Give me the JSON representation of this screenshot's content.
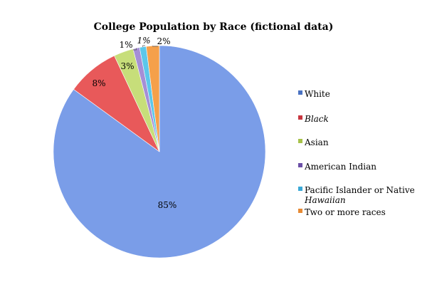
{
  "chart_data": {
    "type": "pie",
    "title": "College Population by Race (fictional data)",
    "categories": [
      "White",
      "Black",
      "Asian",
      "American Indian",
      "Pacific Islander or Native Hawaiian",
      "Two or more races"
    ],
    "legend_lines": [
      [
        "White"
      ],
      [
        "Black"
      ],
      [
        "Asian"
      ],
      [
        "American Indian"
      ],
      [
        "Pacific Islander or Native",
        "Hawaiian"
      ],
      [
        "Two or more races"
      ]
    ],
    "values": [
      85,
      8,
      3,
      1,
      1,
      2
    ],
    "data_labels": [
      "85%",
      "8%",
      "3%",
      "1%",
      "1%",
      "2%"
    ],
    "colors": [
      "#7a9de8",
      "#e8595a",
      "#c7de7a",
      "#a58fd6",
      "#5cc7ea",
      "#f5a04a"
    ],
    "legend_colors": [
      "#4a72c2",
      "#c8363f",
      "#a7c24a",
      "#6b4fa6",
      "#3aa8d6",
      "#e68a34"
    ],
    "legend_placement": "right"
  }
}
